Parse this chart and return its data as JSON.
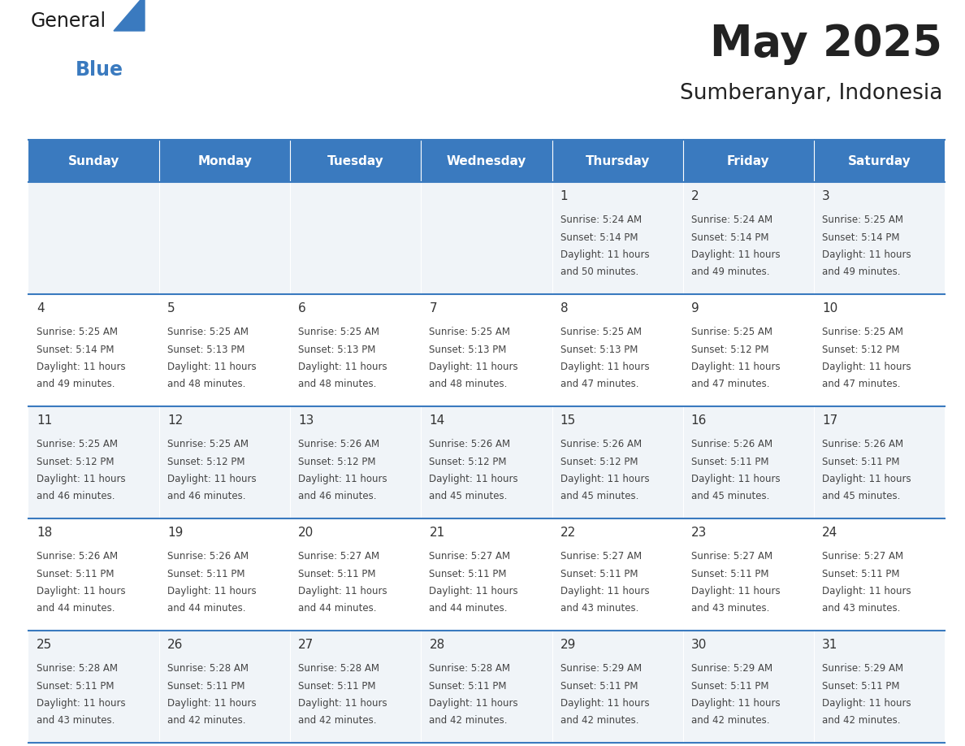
{
  "title": "May 2025",
  "subtitle": "Sumberanyar, Indonesia",
  "days_of_week": [
    "Sunday",
    "Monday",
    "Tuesday",
    "Wednesday",
    "Thursday",
    "Friday",
    "Saturday"
  ],
  "header_bg": "#3a7abf",
  "header_text": "#ffffff",
  "row_bg_odd": "#f0f4f8",
  "row_bg_even": "#ffffff",
  "border_color": "#3a7abf",
  "day_num_color": "#333333",
  "text_color": "#444444",
  "calendar_data": [
    [
      null,
      null,
      null,
      null,
      {
        "day": 1,
        "sunrise": "5:24 AM",
        "sunset": "5:14 PM",
        "daylight_h": "11 hours",
        "daylight_m": "and 50 minutes."
      },
      {
        "day": 2,
        "sunrise": "5:24 AM",
        "sunset": "5:14 PM",
        "daylight_h": "11 hours",
        "daylight_m": "and 49 minutes."
      },
      {
        "day": 3,
        "sunrise": "5:25 AM",
        "sunset": "5:14 PM",
        "daylight_h": "11 hours",
        "daylight_m": "and 49 minutes."
      }
    ],
    [
      {
        "day": 4,
        "sunrise": "5:25 AM",
        "sunset": "5:14 PM",
        "daylight_h": "11 hours",
        "daylight_m": "and 49 minutes."
      },
      {
        "day": 5,
        "sunrise": "5:25 AM",
        "sunset": "5:13 PM",
        "daylight_h": "11 hours",
        "daylight_m": "and 48 minutes."
      },
      {
        "day": 6,
        "sunrise": "5:25 AM",
        "sunset": "5:13 PM",
        "daylight_h": "11 hours",
        "daylight_m": "and 48 minutes."
      },
      {
        "day": 7,
        "sunrise": "5:25 AM",
        "sunset": "5:13 PM",
        "daylight_h": "11 hours",
        "daylight_m": "and 48 minutes."
      },
      {
        "day": 8,
        "sunrise": "5:25 AM",
        "sunset": "5:13 PM",
        "daylight_h": "11 hours",
        "daylight_m": "and 47 minutes."
      },
      {
        "day": 9,
        "sunrise": "5:25 AM",
        "sunset": "5:12 PM",
        "daylight_h": "11 hours",
        "daylight_m": "and 47 minutes."
      },
      {
        "day": 10,
        "sunrise": "5:25 AM",
        "sunset": "5:12 PM",
        "daylight_h": "11 hours",
        "daylight_m": "and 47 minutes."
      }
    ],
    [
      {
        "day": 11,
        "sunrise": "5:25 AM",
        "sunset": "5:12 PM",
        "daylight_h": "11 hours",
        "daylight_m": "and 46 minutes."
      },
      {
        "day": 12,
        "sunrise": "5:25 AM",
        "sunset": "5:12 PM",
        "daylight_h": "11 hours",
        "daylight_m": "and 46 minutes."
      },
      {
        "day": 13,
        "sunrise": "5:26 AM",
        "sunset": "5:12 PM",
        "daylight_h": "11 hours",
        "daylight_m": "and 46 minutes."
      },
      {
        "day": 14,
        "sunrise": "5:26 AM",
        "sunset": "5:12 PM",
        "daylight_h": "11 hours",
        "daylight_m": "and 45 minutes."
      },
      {
        "day": 15,
        "sunrise": "5:26 AM",
        "sunset": "5:12 PM",
        "daylight_h": "11 hours",
        "daylight_m": "and 45 minutes."
      },
      {
        "day": 16,
        "sunrise": "5:26 AM",
        "sunset": "5:11 PM",
        "daylight_h": "11 hours",
        "daylight_m": "and 45 minutes."
      },
      {
        "day": 17,
        "sunrise": "5:26 AM",
        "sunset": "5:11 PM",
        "daylight_h": "11 hours",
        "daylight_m": "and 45 minutes."
      }
    ],
    [
      {
        "day": 18,
        "sunrise": "5:26 AM",
        "sunset": "5:11 PM",
        "daylight_h": "11 hours",
        "daylight_m": "and 44 minutes."
      },
      {
        "day": 19,
        "sunrise": "5:26 AM",
        "sunset": "5:11 PM",
        "daylight_h": "11 hours",
        "daylight_m": "and 44 minutes."
      },
      {
        "day": 20,
        "sunrise": "5:27 AM",
        "sunset": "5:11 PM",
        "daylight_h": "11 hours",
        "daylight_m": "and 44 minutes."
      },
      {
        "day": 21,
        "sunrise": "5:27 AM",
        "sunset": "5:11 PM",
        "daylight_h": "11 hours",
        "daylight_m": "and 44 minutes."
      },
      {
        "day": 22,
        "sunrise": "5:27 AM",
        "sunset": "5:11 PM",
        "daylight_h": "11 hours",
        "daylight_m": "and 43 minutes."
      },
      {
        "day": 23,
        "sunrise": "5:27 AM",
        "sunset": "5:11 PM",
        "daylight_h": "11 hours",
        "daylight_m": "and 43 minutes."
      },
      {
        "day": 24,
        "sunrise": "5:27 AM",
        "sunset": "5:11 PM",
        "daylight_h": "11 hours",
        "daylight_m": "and 43 minutes."
      }
    ],
    [
      {
        "day": 25,
        "sunrise": "5:28 AM",
        "sunset": "5:11 PM",
        "daylight_h": "11 hours",
        "daylight_m": "and 43 minutes."
      },
      {
        "day": 26,
        "sunrise": "5:28 AM",
        "sunset": "5:11 PM",
        "daylight_h": "11 hours",
        "daylight_m": "and 42 minutes."
      },
      {
        "day": 27,
        "sunrise": "5:28 AM",
        "sunset": "5:11 PM",
        "daylight_h": "11 hours",
        "daylight_m": "and 42 minutes."
      },
      {
        "day": 28,
        "sunrise": "5:28 AM",
        "sunset": "5:11 PM",
        "daylight_h": "11 hours",
        "daylight_m": "and 42 minutes."
      },
      {
        "day": 29,
        "sunrise": "5:29 AM",
        "sunset": "5:11 PM",
        "daylight_h": "11 hours",
        "daylight_m": "and 42 minutes."
      },
      {
        "day": 30,
        "sunrise": "5:29 AM",
        "sunset": "5:11 PM",
        "daylight_h": "11 hours",
        "daylight_m": "and 42 minutes."
      },
      {
        "day": 31,
        "sunrise": "5:29 AM",
        "sunset": "5:11 PM",
        "daylight_h": "11 hours",
        "daylight_m": "and 42 minutes."
      }
    ]
  ],
  "logo_color_general": "#1a1a1a",
  "logo_color_blue": "#3a7abf",
  "figsize": [
    11.88,
    9.18
  ],
  "dpi": 100
}
